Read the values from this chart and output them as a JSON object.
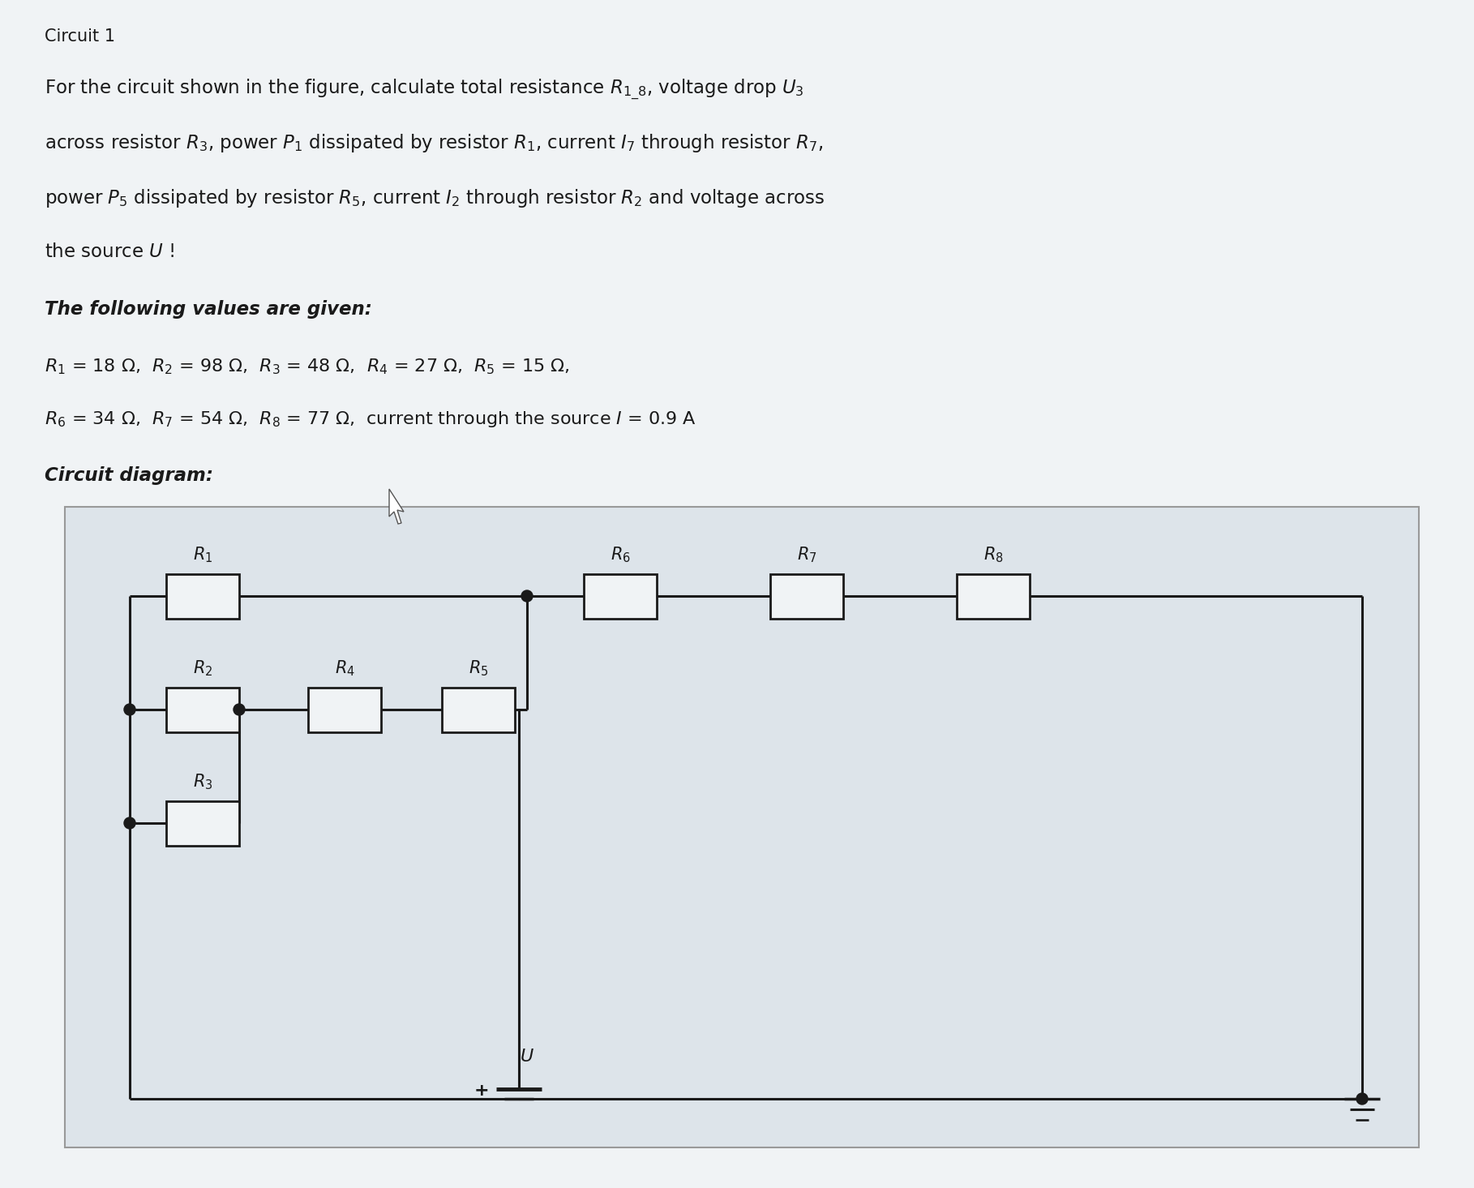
{
  "page_bg": "#f0f3f5",
  "diagram_bg": "#dde4ea",
  "wire_color": "#1a1a1a",
  "node_color": "#1a1a1a",
  "box_fill": "#f0f3f5",
  "title": "Circuit 1",
  "line1": "For the circuit shown in the figure, calculate total resistance $R_{1\\_8}$, voltage drop $U_3$",
  "line2": "across resistor $R_3$, power $P_1$ dissipated by resistor $R_1$, current $I_7$ through resistor $R_7$,",
  "line3": "power $P_5$ dissipated by resistor $R_5$, current $I_2$ through resistor $R_2$ and voltage across",
  "line4": "the source $U$ !",
  "bold_line": "The following values are given:",
  "val1": "$R_1$ = 18 Ω,  $R_2$ = 98 Ω,  $R_3$ = 48 Ω,  $R_4$ = 27 Ω,  $R_5$ = 15 Ω,",
  "val2": "$R_6$ = 34 Ω,  $R_7$ = 54 Ω,  $R_8$ = 77 Ω,  current through the source $I$ = 0.9 A",
  "diag_label": "Circuit diagram:"
}
